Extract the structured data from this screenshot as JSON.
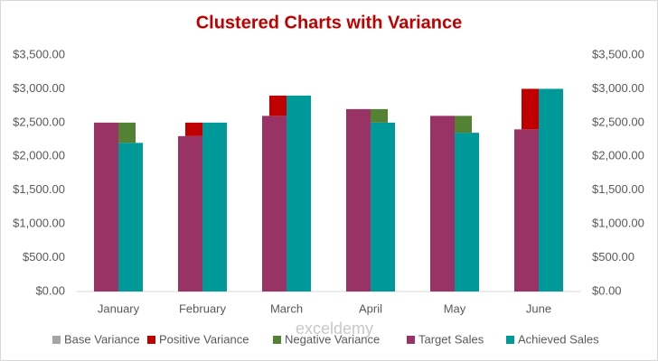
{
  "chart_data": {
    "type": "bar",
    "title": "Clustered Charts with Variance",
    "watermark": "exceldemy",
    "categories": [
      "January",
      "February",
      "March",
      "April",
      "May",
      "June"
    ],
    "series": [
      {
        "name": "Base Variance",
        "color": "#a5a5a5",
        "axis": "y2",
        "values": [
          2200,
          2300,
          2600,
          2500,
          2350,
          2400
        ]
      },
      {
        "name": "Positive Variance",
        "color": "#c00000",
        "axis": "y2",
        "values": [
          0,
          200,
          300,
          0,
          0,
          600
        ]
      },
      {
        "name": "Negative Variance",
        "color": "#548235",
        "axis": "y2",
        "values": [
          300,
          0,
          0,
          200,
          250,
          0
        ]
      },
      {
        "name": "Target Sales",
        "color": "#993366",
        "values": [
          2500,
          2300,
          2600,
          2700,
          2600,
          2400
        ]
      },
      {
        "name": "Achieved Sales",
        "color": "#009999",
        "values": [
          2200,
          2500,
          2900,
          2500,
          2350,
          3000
        ]
      }
    ],
    "ylim": [
      0,
      3500
    ],
    "yticks": [
      {
        "value": 0,
        "label": "$0.00"
      },
      {
        "value": 500,
        "label": "$500.00"
      },
      {
        "value": 1000,
        "label": "$1,000.00"
      },
      {
        "value": 1500,
        "label": "$1,500.00"
      },
      {
        "value": 2000,
        "label": "$2,000.00"
      },
      {
        "value": 2500,
        "label": "$2,500.00"
      },
      {
        "value": 3000,
        "label": "$3,000.00"
      },
      {
        "value": 3500,
        "label": "$3,500.00"
      }
    ],
    "y2lim": [
      0,
      3500
    ],
    "y2ticks": [
      {
        "value": 0,
        "label": "$0.00"
      },
      {
        "value": 500,
        "label": "$500.00"
      },
      {
        "value": 1000,
        "label": "$1,000.00"
      },
      {
        "value": 1500,
        "label": "$1,500.00"
      },
      {
        "value": 2000,
        "label": "$2,000.00"
      },
      {
        "value": 2500,
        "label": "$2,500.00"
      },
      {
        "value": 3000,
        "label": "$3,000.00"
      },
      {
        "value": 3500,
        "label": "$3,500.00"
      }
    ],
    "legend": "bottom"
  }
}
